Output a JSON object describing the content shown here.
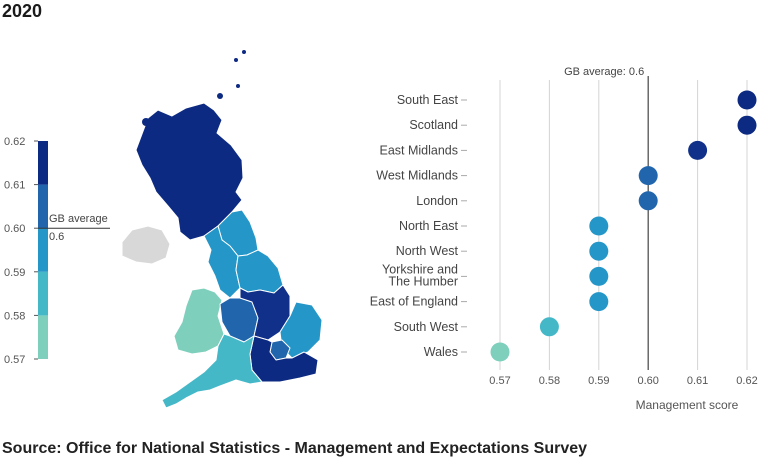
{
  "title": "2020",
  "source": "Source: Office for National Statistics - Management and Expectations Survey",
  "chart_data": [
    {
      "type": "choropleth",
      "legend": {
        "ticks": [
          "0.57",
          "0.58",
          "0.59",
          "0.60",
          "0.61",
          "0.62"
        ],
        "range": [
          0.57,
          0.62
        ],
        "average_label": "GB average",
        "average_value_label": "0.6",
        "average": 0.6
      },
      "colors": {
        "0.57": "#7ecfbc",
        "0.58": "#45b8c8",
        "0.59": "#2596c8",
        "0.60": "#2166ad",
        "0.61": "#10308a",
        "0.62": "#0d2a82",
        "no_data": "#d8d8d8"
      }
    },
    {
      "type": "scatter",
      "categories": [
        "South East",
        "Scotland",
        "East Midlands",
        "West Midlands",
        "London",
        "North East",
        "North West",
        "Yorkshire and The Humber",
        "East of England",
        "South West",
        "Wales"
      ],
      "category_lines": [
        [
          "South East"
        ],
        [
          "Scotland"
        ],
        [
          "East Midlands"
        ],
        [
          "West Midlands"
        ],
        [
          "London"
        ],
        [
          "North East"
        ],
        [
          "North West"
        ],
        [
          "Yorkshire and",
          "The Humber"
        ],
        [
          "East of England"
        ],
        [
          "South West"
        ],
        [
          "Wales"
        ]
      ],
      "values": [
        0.62,
        0.62,
        0.61,
        0.6,
        0.6,
        0.59,
        0.59,
        0.59,
        0.59,
        0.58,
        0.57
      ],
      "x_ticks": [
        "0.57",
        "0.58",
        "0.59",
        "0.60",
        "0.61",
        "0.62"
      ],
      "xlim": [
        0.57,
        0.62
      ],
      "xlabel": "Management score",
      "reference_line": {
        "value": 0.6,
        "label": "GB average: 0.6"
      },
      "grid": true
    }
  ]
}
